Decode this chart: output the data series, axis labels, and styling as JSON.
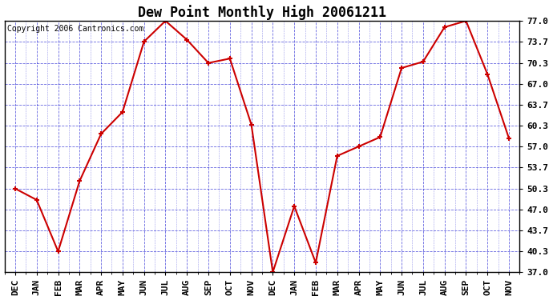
{
  "title": "Dew Point Monthly High 20061211",
  "copyright": "Copyright 2006 Cantronics.com",
  "x_labels": [
    "DEC",
    "JAN",
    "FEB",
    "MAR",
    "APR",
    "MAY",
    "JUN",
    "JUL",
    "AUG",
    "SEP",
    "OCT",
    "NOV",
    "DEC",
    "JAN",
    "FEB",
    "MAR",
    "APR",
    "MAY",
    "JUN",
    "JUL",
    "AUG",
    "SEP",
    "OCT",
    "NOV"
  ],
  "y_values": [
    50.3,
    48.5,
    40.3,
    51.5,
    59.0,
    62.5,
    73.7,
    77.0,
    74.0,
    70.3,
    71.0,
    60.5,
    37.0,
    47.5,
    38.5,
    55.5,
    57.0,
    58.5,
    69.5,
    70.5,
    76.0,
    77.0,
    68.5,
    58.3
  ],
  "ylim": [
    37.0,
    77.0
  ],
  "yticks": [
    37.0,
    40.3,
    43.7,
    47.0,
    50.3,
    53.7,
    57.0,
    60.3,
    63.7,
    67.0,
    70.3,
    73.7,
    77.0
  ],
  "line_color": "#cc0000",
  "marker": "+",
  "marker_size": 5,
  "marker_linewidth": 1.5,
  "plot_bg": "#ffffff",
  "fig_bg": "#ffffff",
  "grid_color": "#0000cc",
  "grid_alpha": 0.6,
  "title_fontsize": 12,
  "tick_fontsize": 8,
  "copyright_fontsize": 7,
  "line_width": 1.5
}
